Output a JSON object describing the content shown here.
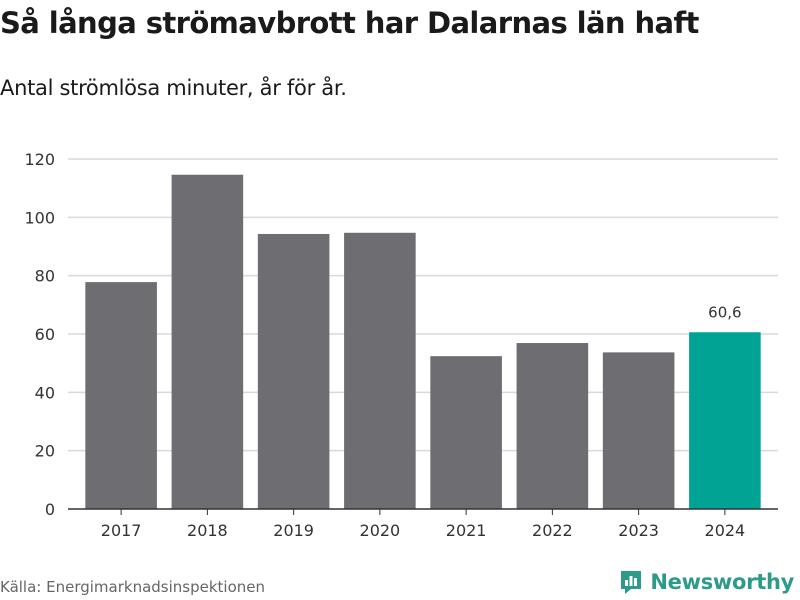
{
  "header": {
    "title": "Så långa strömavbrott har Dalarnas län haft",
    "subtitle": "Antal strömlösa minuter, år för år."
  },
  "footer": {
    "source": "Källa: Energimarknadsinspektionen",
    "brand": "Newsworthy",
    "brand_icon": "bar-chart-logo-icon"
  },
  "colors": {
    "bar_default": "#6d6d72",
    "bar_highlight": "#00a394",
    "gridline": "#d9d9d9",
    "axis": "#333333",
    "brand": "#2e9a8a"
  },
  "chart_data": {
    "type": "bar",
    "title": "Så långa strömavbrott har Dalarnas län haft",
    "subtitle": "Antal strömlösa minuter, år för år.",
    "xlabel": "",
    "ylabel": "",
    "categories": [
      "2017",
      "2018",
      "2019",
      "2020",
      "2021",
      "2022",
      "2023",
      "2024"
    ],
    "values": [
      77.8,
      114.6,
      94.3,
      94.7,
      52.4,
      56.9,
      53.7,
      60.6
    ],
    "highlight_index": 7,
    "data_labels": [
      null,
      null,
      null,
      null,
      null,
      null,
      null,
      "60,6"
    ],
    "ylim": [
      0,
      120
    ],
    "yticks": [
      0,
      20,
      40,
      60,
      80,
      100,
      120
    ],
    "grid": true,
    "legend": "none"
  }
}
